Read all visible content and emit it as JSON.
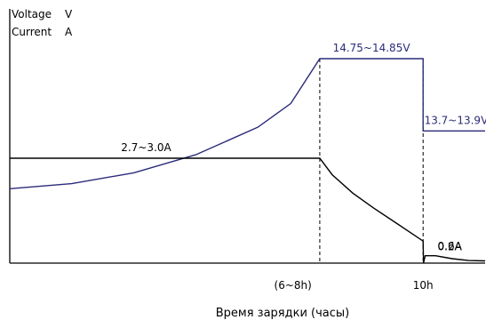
{
  "chart_data": {
    "type": "line",
    "title": "",
    "legend": [
      {
        "quantity": "Voltage",
        "unit": "V"
      },
      {
        "quantity": "Current",
        "unit": "A"
      }
    ],
    "xlabel": "Время зарядки (часы)",
    "x_ticks": [
      {
        "label": "(6~8h)",
        "x": 6.85
      },
      {
        "label": "10h",
        "x": 10
      }
    ],
    "xlim": [
      0,
      11.5
    ],
    "phase_boundaries": [
      7.5,
      10
    ],
    "series": [
      {
        "name": "Voltage",
        "color": "#2b2b7a",
        "points": [
          [
            0,
            13.0
          ],
          [
            1.5,
            13.07
          ],
          [
            3,
            13.22
          ],
          [
            4.5,
            13.47
          ],
          [
            6,
            13.85
          ],
          [
            6.8,
            14.18
          ],
          [
            7.5,
            14.8
          ],
          [
            10,
            14.8
          ],
          [
            10,
            13.8
          ],
          [
            11.5,
            13.8
          ]
        ],
        "annotations": [
          {
            "text": "14.75~14.85V",
            "x": 8.75,
            "y": 14.8
          },
          {
            "text": "13.7~13.9V",
            "x": 10.8,
            "y": 13.8
          }
        ]
      },
      {
        "name": "Current",
        "color": "#000000",
        "points": [
          [
            0,
            2.85
          ],
          [
            7.5,
            2.85
          ],
          [
            7.8,
            2.4
          ],
          [
            8.3,
            1.9
          ],
          [
            8.8,
            1.5
          ],
          [
            9.4,
            1.05
          ],
          [
            10,
            0.6
          ],
          [
            10.01,
            0.0
          ],
          [
            10.05,
            0.2
          ],
          [
            10.3,
            0.2
          ],
          [
            10.7,
            0.12
          ],
          [
            11.1,
            0.07
          ],
          [
            11.5,
            0.06
          ]
        ],
        "annotations": [
          {
            "text": "2.7~3.0A",
            "x": 3.3,
            "y": 2.85
          },
          {
            "text": "0.6A",
            "x": 10.35,
            "y": 0.6
          },
          {
            "text": "0.2A",
            "x": 10.35,
            "y": 0.2
          }
        ]
      }
    ],
    "grid": false
  }
}
